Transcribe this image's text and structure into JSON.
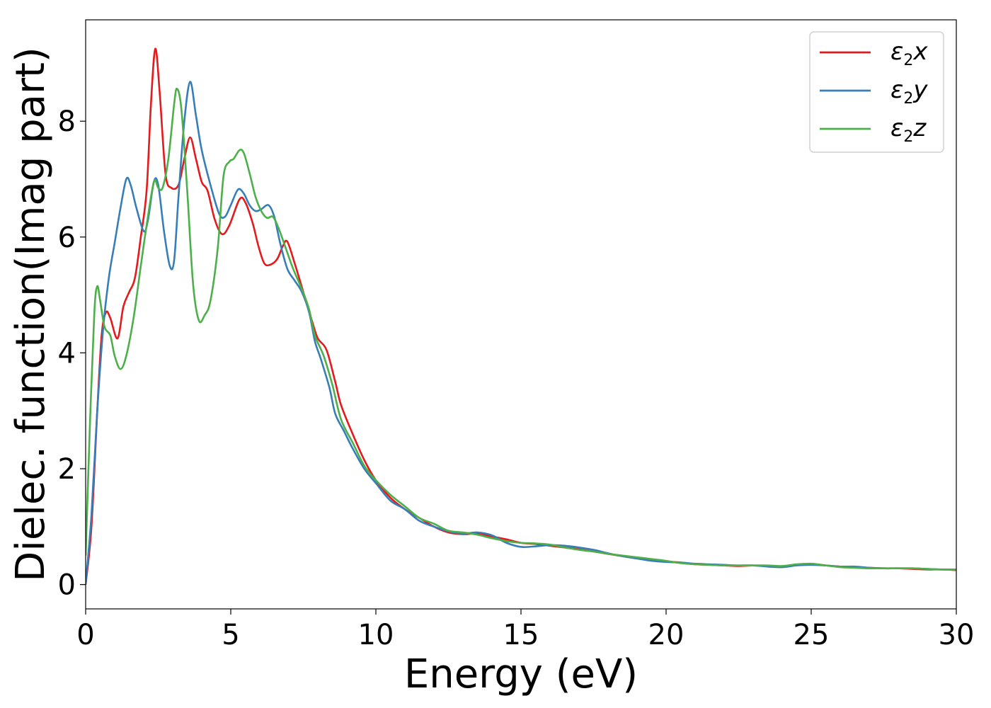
{
  "chart_data": {
    "type": "line",
    "title": "",
    "xlabel": "Energy (eV)",
    "ylabel": "Dielec. function(Imag part)",
    "xlim": [
      0,
      30
    ],
    "ylim": [
      -0.42,
      9.75
    ],
    "xticks": [
      0,
      5,
      10,
      15,
      20,
      25,
      30
    ],
    "yticks": [
      0,
      2,
      4,
      6,
      8
    ],
    "grid": false,
    "legend": "top-right",
    "series": [
      {
        "name_base": "ε",
        "name_sub": "2",
        "name_suffix": "x",
        "color": "#e41a1c",
        "points": [
          [
            0,
            0
          ],
          [
            0.2,
            1.0
          ],
          [
            0.4,
            3.0
          ],
          [
            0.55,
            4.3
          ],
          [
            0.7,
            4.7
          ],
          [
            0.85,
            4.6
          ],
          [
            1.1,
            4.25
          ],
          [
            1.3,
            4.8
          ],
          [
            1.5,
            5.05
          ],
          [
            1.7,
            5.3
          ],
          [
            1.9,
            6.0
          ],
          [
            2.1,
            6.8
          ],
          [
            2.25,
            8.3
          ],
          [
            2.4,
            9.25
          ],
          [
            2.55,
            8.5
          ],
          [
            2.75,
            7.1
          ],
          [
            2.95,
            6.85
          ],
          [
            3.2,
            6.9
          ],
          [
            3.4,
            7.35
          ],
          [
            3.6,
            7.72
          ],
          [
            3.8,
            7.35
          ],
          [
            4.0,
            6.95
          ],
          [
            4.2,
            6.8
          ],
          [
            4.45,
            6.3
          ],
          [
            4.7,
            6.05
          ],
          [
            4.95,
            6.2
          ],
          [
            5.3,
            6.65
          ],
          [
            5.5,
            6.6
          ],
          [
            5.75,
            6.25
          ],
          [
            5.95,
            5.85
          ],
          [
            6.15,
            5.55
          ],
          [
            6.35,
            5.52
          ],
          [
            6.6,
            5.62
          ],
          [
            6.8,
            5.85
          ],
          [
            6.95,
            5.92
          ],
          [
            7.2,
            5.55
          ],
          [
            7.5,
            5.05
          ],
          [
            7.8,
            4.55
          ],
          [
            8.0,
            4.25
          ],
          [
            8.3,
            4.05
          ],
          [
            8.6,
            3.5
          ],
          [
            8.8,
            3.1
          ],
          [
            9.2,
            2.6
          ],
          [
            9.6,
            2.15
          ],
          [
            10.0,
            1.8
          ],
          [
            10.5,
            1.5
          ],
          [
            11.0,
            1.3
          ],
          [
            11.5,
            1.15
          ],
          [
            12.0,
            1.0
          ],
          [
            12.5,
            0.9
          ],
          [
            13.0,
            0.87
          ],
          [
            13.5,
            0.88
          ],
          [
            14.0,
            0.83
          ],
          [
            14.5,
            0.78
          ],
          [
            15.0,
            0.72
          ],
          [
            15.5,
            0.7
          ],
          [
            16.0,
            0.67
          ],
          [
            16.5,
            0.64
          ],
          [
            17.0,
            0.61
          ],
          [
            17.5,
            0.57
          ],
          [
            18.0,
            0.53
          ],
          [
            18.5,
            0.49
          ],
          [
            19.0,
            0.45
          ],
          [
            19.5,
            0.42
          ],
          [
            20.0,
            0.4
          ],
          [
            20.5,
            0.38
          ],
          [
            21.0,
            0.35
          ],
          [
            21.5,
            0.34
          ],
          [
            22.0,
            0.33
          ],
          [
            22.5,
            0.32
          ],
          [
            23.0,
            0.33
          ],
          [
            23.5,
            0.32
          ],
          [
            24.0,
            0.31
          ],
          [
            24.5,
            0.34
          ],
          [
            25.0,
            0.35
          ],
          [
            25.5,
            0.33
          ],
          [
            26.0,
            0.31
          ],
          [
            26.5,
            0.3
          ],
          [
            27.0,
            0.29
          ],
          [
            27.5,
            0.28
          ],
          [
            28.0,
            0.28
          ],
          [
            28.5,
            0.27
          ],
          [
            29.0,
            0.26
          ],
          [
            29.5,
            0.26
          ],
          [
            30.0,
            0.25
          ]
        ]
      },
      {
        "name_base": "ε",
        "name_sub": "2",
        "name_suffix": "y",
        "color": "#377eb8",
        "points": [
          [
            0,
            0
          ],
          [
            0.2,
            1.2
          ],
          [
            0.4,
            3.0
          ],
          [
            0.6,
            4.4
          ],
          [
            0.8,
            5.3
          ],
          [
            1.0,
            5.9
          ],
          [
            1.2,
            6.5
          ],
          [
            1.4,
            7.0
          ],
          [
            1.55,
            6.9
          ],
          [
            1.75,
            6.5
          ],
          [
            2.0,
            6.1
          ],
          [
            2.15,
            6.3
          ],
          [
            2.35,
            6.95
          ],
          [
            2.5,
            6.9
          ],
          [
            2.7,
            6.1
          ],
          [
            2.9,
            5.5
          ],
          [
            3.05,
            5.6
          ],
          [
            3.2,
            6.7
          ],
          [
            3.4,
            8.0
          ],
          [
            3.6,
            8.68
          ],
          [
            3.8,
            8.1
          ],
          [
            4.0,
            7.5
          ],
          [
            4.3,
            6.9
          ],
          [
            4.6,
            6.4
          ],
          [
            4.8,
            6.35
          ],
          [
            5.0,
            6.55
          ],
          [
            5.25,
            6.82
          ],
          [
            5.45,
            6.75
          ],
          [
            5.65,
            6.55
          ],
          [
            5.85,
            6.45
          ],
          [
            6.05,
            6.48
          ],
          [
            6.3,
            6.55
          ],
          [
            6.5,
            6.35
          ],
          [
            6.7,
            5.9
          ],
          [
            6.95,
            5.45
          ],
          [
            7.2,
            5.25
          ],
          [
            7.45,
            5.05
          ],
          [
            7.7,
            4.7
          ],
          [
            7.9,
            4.2
          ],
          [
            8.1,
            3.9
          ],
          [
            8.4,
            3.4
          ],
          [
            8.6,
            2.95
          ],
          [
            8.9,
            2.65
          ],
          [
            9.2,
            2.35
          ],
          [
            9.6,
            2.0
          ],
          [
            10.0,
            1.75
          ],
          [
            10.5,
            1.45
          ],
          [
            11.0,
            1.3
          ],
          [
            11.5,
            1.1
          ],
          [
            12.0,
            1.0
          ],
          [
            12.5,
            0.92
          ],
          [
            13.0,
            0.88
          ],
          [
            13.5,
            0.9
          ],
          [
            14.0,
            0.85
          ],
          [
            14.5,
            0.72
          ],
          [
            15.0,
            0.65
          ],
          [
            15.5,
            0.66
          ],
          [
            16.0,
            0.68
          ],
          [
            16.5,
            0.67
          ],
          [
            17.0,
            0.64
          ],
          [
            17.5,
            0.6
          ],
          [
            18.0,
            0.54
          ],
          [
            18.5,
            0.49
          ],
          [
            19.0,
            0.45
          ],
          [
            19.5,
            0.41
          ],
          [
            20.0,
            0.39
          ],
          [
            20.5,
            0.38
          ],
          [
            21.0,
            0.36
          ],
          [
            21.5,
            0.35
          ],
          [
            22.0,
            0.34
          ],
          [
            22.5,
            0.33
          ],
          [
            23.0,
            0.33
          ],
          [
            23.5,
            0.31
          ],
          [
            24.0,
            0.3
          ],
          [
            24.5,
            0.33
          ],
          [
            25.0,
            0.34
          ],
          [
            25.5,
            0.33
          ],
          [
            26.0,
            0.31
          ],
          [
            26.5,
            0.31
          ],
          [
            27.0,
            0.29
          ],
          [
            27.5,
            0.28
          ],
          [
            28.0,
            0.28
          ],
          [
            28.5,
            0.28
          ],
          [
            29.0,
            0.27
          ],
          [
            29.5,
            0.26
          ],
          [
            30.0,
            0.26
          ]
        ]
      },
      {
        "name_base": "ε",
        "name_sub": "2",
        "name_suffix": "z",
        "color": "#4daf4a",
        "points": [
          [
            0,
            0.5
          ],
          [
            0.15,
            2.8
          ],
          [
            0.3,
            4.7
          ],
          [
            0.4,
            5.15
          ],
          [
            0.5,
            4.9
          ],
          [
            0.65,
            4.45
          ],
          [
            0.85,
            4.3
          ],
          [
            1.0,
            3.95
          ],
          [
            1.2,
            3.72
          ],
          [
            1.4,
            3.95
          ],
          [
            1.65,
            4.6
          ],
          [
            1.9,
            5.5
          ],
          [
            2.1,
            6.2
          ],
          [
            2.35,
            6.95
          ],
          [
            2.5,
            6.85
          ],
          [
            2.65,
            6.85
          ],
          [
            2.85,
            7.35
          ],
          [
            3.05,
            8.3
          ],
          [
            3.15,
            8.56
          ],
          [
            3.3,
            8.2
          ],
          [
            3.5,
            6.8
          ],
          [
            3.7,
            5.2
          ],
          [
            3.9,
            4.56
          ],
          [
            4.1,
            4.65
          ],
          [
            4.3,
            4.9
          ],
          [
            4.55,
            5.8
          ],
          [
            4.75,
            7.05
          ],
          [
            4.95,
            7.3
          ],
          [
            5.1,
            7.35
          ],
          [
            5.3,
            7.5
          ],
          [
            5.45,
            7.45
          ],
          [
            5.65,
            7.1
          ],
          [
            5.85,
            6.7
          ],
          [
            6.05,
            6.45
          ],
          [
            6.25,
            6.33
          ],
          [
            6.45,
            6.35
          ],
          [
            6.65,
            6.15
          ],
          [
            6.9,
            5.8
          ],
          [
            7.15,
            5.45
          ],
          [
            7.45,
            5.1
          ],
          [
            7.7,
            4.75
          ],
          [
            7.9,
            4.3
          ],
          [
            8.2,
            3.95
          ],
          [
            8.5,
            3.45
          ],
          [
            8.8,
            2.85
          ],
          [
            9.2,
            2.45
          ],
          [
            9.6,
            2.05
          ],
          [
            10.0,
            1.8
          ],
          [
            10.5,
            1.55
          ],
          [
            11.0,
            1.35
          ],
          [
            11.5,
            1.15
          ],
          [
            12.0,
            1.05
          ],
          [
            12.5,
            0.93
          ],
          [
            13.0,
            0.9
          ],
          [
            13.5,
            0.86
          ],
          [
            14.0,
            0.8
          ],
          [
            14.5,
            0.75
          ],
          [
            15.0,
            0.72
          ],
          [
            15.5,
            0.71
          ],
          [
            16.0,
            0.69
          ],
          [
            16.5,
            0.64
          ],
          [
            17.0,
            0.6
          ],
          [
            17.5,
            0.57
          ],
          [
            18.0,
            0.53
          ],
          [
            18.5,
            0.5
          ],
          [
            19.0,
            0.47
          ],
          [
            19.5,
            0.44
          ],
          [
            20.0,
            0.41
          ],
          [
            20.5,
            0.37
          ],
          [
            21.0,
            0.35
          ],
          [
            21.5,
            0.34
          ],
          [
            22.0,
            0.33
          ],
          [
            22.5,
            0.33
          ],
          [
            23.0,
            0.33
          ],
          [
            23.5,
            0.33
          ],
          [
            24.0,
            0.32
          ],
          [
            24.5,
            0.35
          ],
          [
            25.0,
            0.36
          ],
          [
            25.5,
            0.33
          ],
          [
            26.0,
            0.3
          ],
          [
            26.5,
            0.29
          ],
          [
            27.0,
            0.28
          ],
          [
            27.5,
            0.28
          ],
          [
            28.0,
            0.28
          ],
          [
            28.5,
            0.28
          ],
          [
            29.0,
            0.27
          ],
          [
            29.5,
            0.26
          ],
          [
            30.0,
            0.26
          ]
        ]
      }
    ]
  }
}
